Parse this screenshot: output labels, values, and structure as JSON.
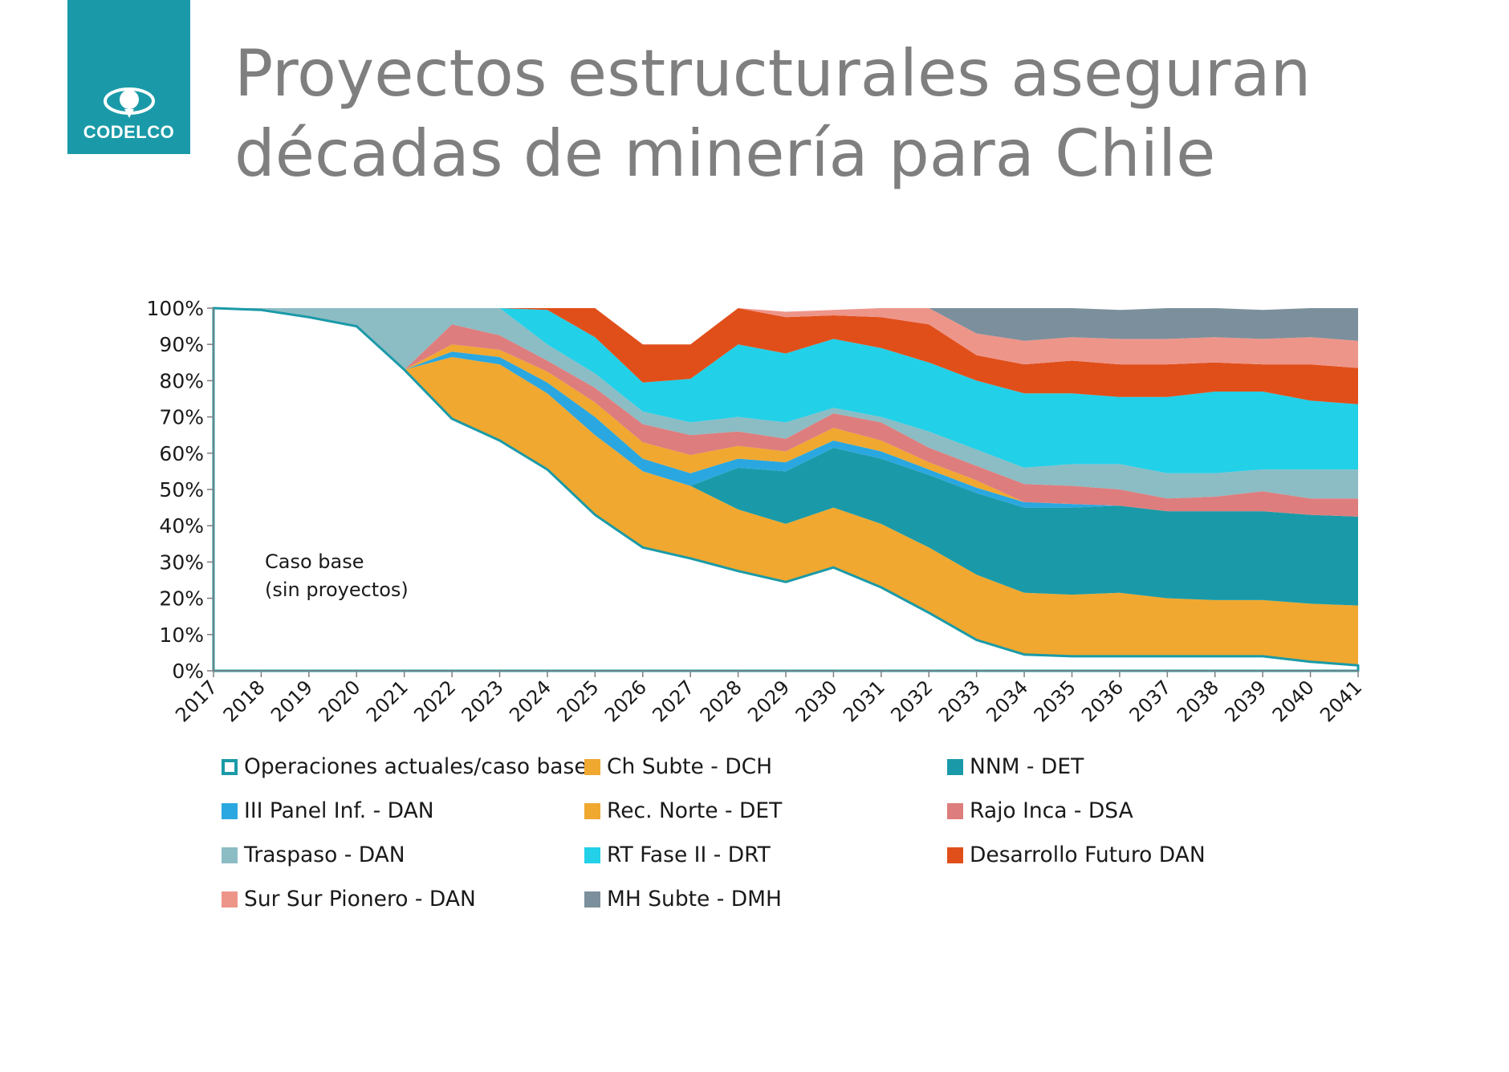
{
  "logo": {
    "text": "CODELCO",
    "color": "#1a9aa8"
  },
  "title": {
    "line1": "Proyectos estructurales aseguran",
    "line2": "décadas de minería para Chile"
  },
  "chart_data": {
    "type": "area",
    "stacked": true,
    "x": [
      "2017",
      "2018",
      "2019",
      "2020",
      "2021",
      "2022",
      "2023",
      "2024",
      "2025",
      "2026",
      "2027",
      "2028",
      "2029",
      "2030",
      "2031",
      "2032",
      "2033",
      "2034",
      "2035",
      "2036",
      "2037",
      "2038",
      "2039",
      "2040",
      "2041"
    ],
    "yticks": [
      "0%",
      "10%",
      "20%",
      "30%",
      "40%",
      "50%",
      "60%",
      "70%",
      "80%",
      "90%",
      "100%"
    ],
    "ylim": [
      0,
      100
    ],
    "annotation": {
      "line1": "Caso  base",
      "line2": "(sin proyectos)"
    },
    "series": [
      {
        "name": "Operaciones actuales/caso base",
        "color": "#1a9aa8",
        "style": "outline",
        "values": [
          100,
          99.5,
          97.5,
          95,
          83,
          69.5,
          63.5,
          55.5,
          43,
          34,
          31,
          27.5,
          24.5,
          28.5,
          23,
          16,
          8.5,
          4.5,
          4,
          4,
          4,
          4,
          4,
          2.5,
          1.5
        ]
      },
      {
        "name": "Ch Subte - DCH",
        "color": "#f0a830",
        "values": [
          0,
          0,
          0,
          0,
          0,
          17,
          21,
          21,
          22,
          21,
          20,
          17,
          16,
          16.5,
          17.5,
          18,
          18,
          17,
          17,
          17.5,
          16,
          15.5,
          15.5,
          16,
          16.5
        ]
      },
      {
        "name": "NNM - DET",
        "color": "#1a9aa8",
        "values": [
          0,
          0,
          0,
          0,
          0,
          0,
          0,
          0,
          0,
          0,
          0,
          11.5,
          14.5,
          16.5,
          18,
          20,
          22.5,
          23.5,
          24,
          24,
          24,
          24.5,
          24.5,
          24.5,
          24.5
        ]
      },
      {
        "name": "III Panel Inf. - DAN",
        "color": "#2aa7e0",
        "values": [
          0,
          0,
          0,
          0,
          0,
          1.5,
          2,
          3,
          5,
          3.5,
          3.5,
          2.5,
          2.5,
          2,
          2,
          1.5,
          1.5,
          1.5,
          1,
          0,
          0,
          0,
          0,
          0,
          0
        ]
      },
      {
        "name": "Rec. Norte - DET",
        "color": "#f0a830",
        "values": [
          0,
          0,
          0,
          0,
          0,
          2,
          2,
          3,
          4,
          4.5,
          5,
          3.5,
          3,
          3.5,
          3,
          2,
          2,
          0,
          0,
          0,
          0,
          0,
          0,
          0,
          0
        ]
      },
      {
        "name": "Rajo Inca - DSA",
        "color": "#de7d7d",
        "values": [
          0,
          0,
          0,
          0,
          0,
          5.5,
          4,
          3,
          4,
          5,
          5.5,
          4,
          3.5,
          4,
          5,
          4,
          4,
          5,
          5,
          4.5,
          3.5,
          4,
          5.5,
          4.5,
          5
        ]
      },
      {
        "name": "Traspaso - DAN",
        "color": "#8cbcc4",
        "values": [
          0,
          0.5,
          2.5,
          5,
          17,
          4.5,
          7.5,
          4.5,
          4,
          3.5,
          3.5,
          4,
          4.5,
          1.5,
          1.5,
          4.5,
          4.5,
          4.5,
          6,
          7,
          7,
          6.5,
          6,
          8,
          8
        ]
      },
      {
        "name": "RT Fase II - DRT",
        "color": "#22d0e8",
        "values": [
          0,
          0,
          0,
          0,
          0,
          0,
          0,
          9.5,
          10,
          8,
          12,
          20,
          19,
          19,
          19,
          19,
          19,
          20.5,
          19.5,
          18.5,
          21,
          22.5,
          21.5,
          19,
          18
        ]
      },
      {
        "name": "Desarrollo Futuro DAN",
        "color": "#e04f1a",
        "values": [
          0,
          0,
          0,
          0,
          0,
          0,
          0,
          0.5,
          8,
          10.5,
          9.5,
          10,
          10,
          6.5,
          8.5,
          10.5,
          7,
          8,
          9,
          9,
          9,
          8,
          7.5,
          10,
          10
        ]
      },
      {
        "name": "Sur Sur Pionero - DAN",
        "color": "#ee958a",
        "values": [
          0,
          0,
          0,
          0,
          0,
          0,
          0,
          0,
          0,
          0,
          0,
          0,
          1.5,
          1.5,
          2.5,
          4.5,
          6,
          6.5,
          6.5,
          7,
          7,
          7,
          7,
          7.5,
          7.5
        ]
      },
      {
        "name": "MH Subte - DMH",
        "color": "#7c8f9c",
        "values": [
          0,
          0,
          0,
          0,
          0,
          0,
          0,
          0,
          0,
          0,
          0,
          0,
          0,
          0,
          0,
          0,
          8,
          9,
          8,
          8,
          8.5,
          8,
          8,
          8,
          9
        ]
      }
    ],
    "legend": {
      "placement": "bottom",
      "columns": 3
    }
  }
}
